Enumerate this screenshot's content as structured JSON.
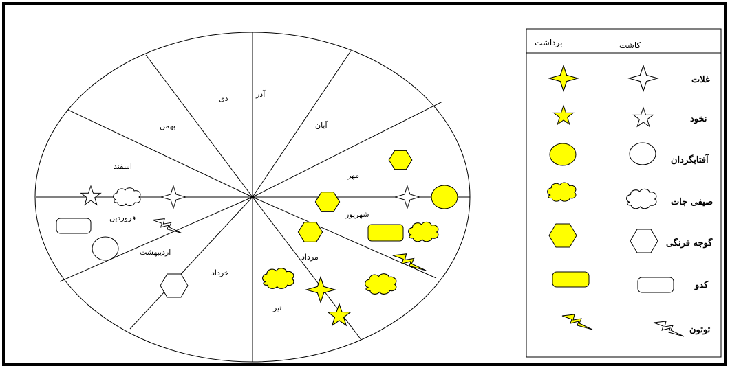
{
  "wheel": {
    "months": {
      "dey": "دی",
      "azar": "آذر",
      "bahman": "بهمن",
      "aban": "آبان",
      "esfand": "اسفند",
      "mehr": "مهر",
      "farvardin": "فروردین",
      "shahrivar": "شهریور",
      "ordibehesht": "اردیبهشت",
      "mordad": "مرداد",
      "khordad": "خرداد",
      "tir": "تیر"
    }
  },
  "legend": {
    "header_harvest": "برداشت",
    "header_planting": "کاشت",
    "rows": [
      {
        "label": "غلات",
        "icon": "four-point-star-icon"
      },
      {
        "label": "نخود",
        "icon": "five-point-star-icon"
      },
      {
        "label": "آفتابگردان",
        "icon": "oval-icon"
      },
      {
        "label": "صیفی جات",
        "icon": "cloud-icon"
      },
      {
        "label": "گوجه فرنگی",
        "icon": "hexagon-icon"
      },
      {
        "label": "کدو",
        "icon": "rounded-rect-icon"
      },
      {
        "label": "توتون",
        "icon": "lightning-icon"
      }
    ],
    "colors": {
      "harvest_fill": "#ffff00",
      "planting_fill": "#ffffff",
      "outline": "#000000"
    }
  }
}
